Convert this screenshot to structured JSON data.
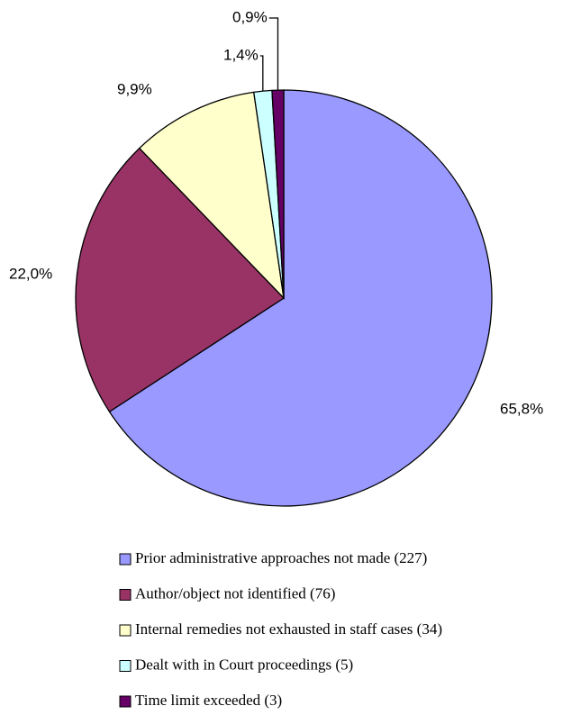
{
  "chart_data": {
    "type": "pie",
    "categories": [
      "Prior administrative approaches not made (227)",
      "Author/object not identified (76)",
      "Internal remedies not exhausted in staff cases (34)",
      "Dealt with in Court proceedings (5)",
      "Time limit exceeded (3)"
    ],
    "values": [
      65.8,
      22.0,
      9.9,
      1.4,
      0.9
    ],
    "value_labels": [
      "65,8%",
      "22,0%",
      "9,9%",
      "1,4%",
      "0,9%"
    ],
    "colors": [
      "#9999ff",
      "#993366",
      "#ffffcc",
      "#ccffff",
      "#660066"
    ],
    "legend": "bottom"
  }
}
